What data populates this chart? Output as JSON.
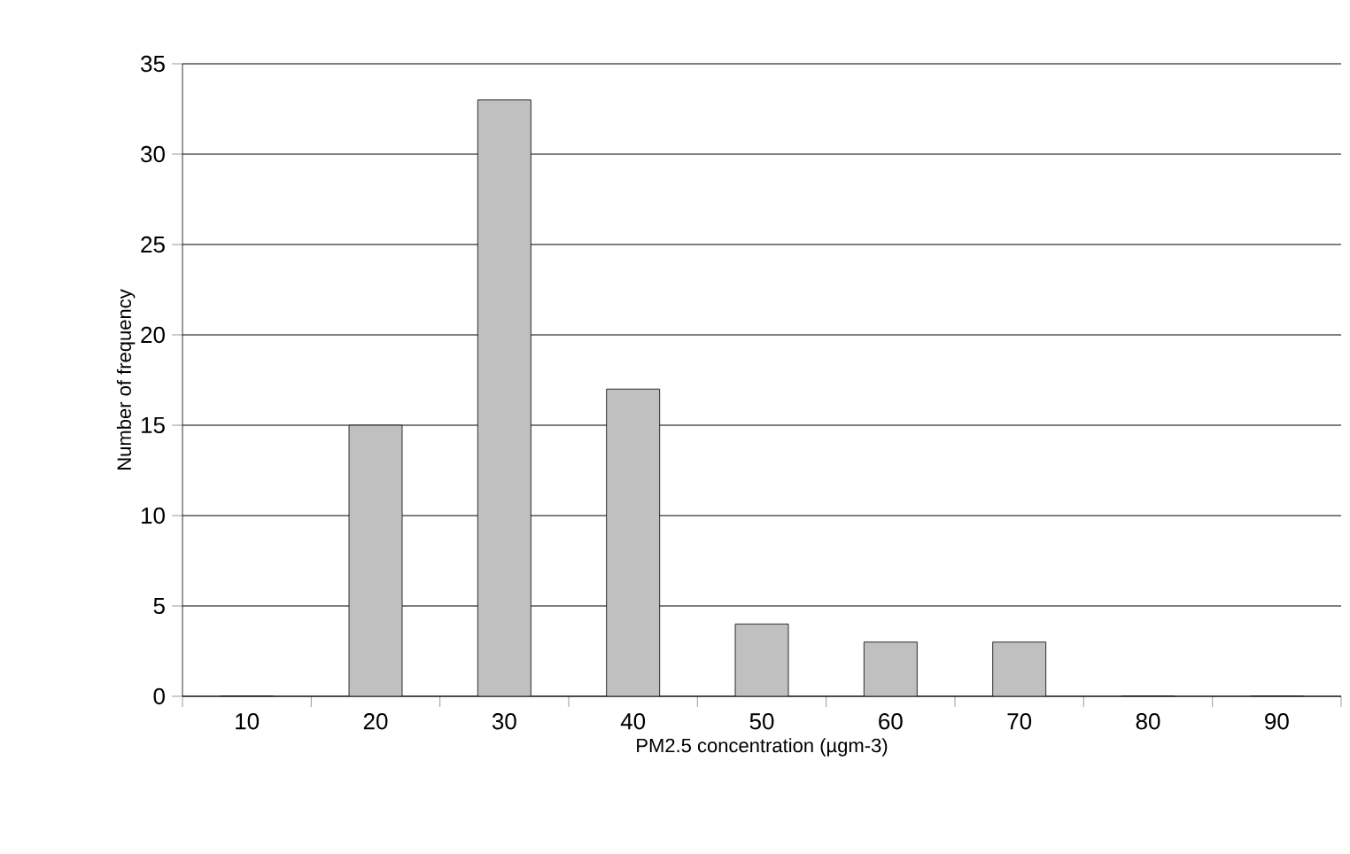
{
  "chart_data": {
    "type": "bar",
    "xlabel": "PM2.5 concentration (µgm-3)",
    "ylabel": "Number of frequency",
    "categories": [
      "10",
      "20",
      "30",
      "40",
      "50",
      "60",
      "70",
      "80",
      "90"
    ],
    "values": [
      0,
      15,
      33,
      17,
      4,
      3,
      3,
      0,
      0
    ],
    "color": "#c0c0c0",
    "ylim": [
      0,
      35
    ],
    "yticks": [
      0,
      5,
      10,
      15,
      20,
      25,
      30,
      35
    ],
    "grid": "y"
  }
}
